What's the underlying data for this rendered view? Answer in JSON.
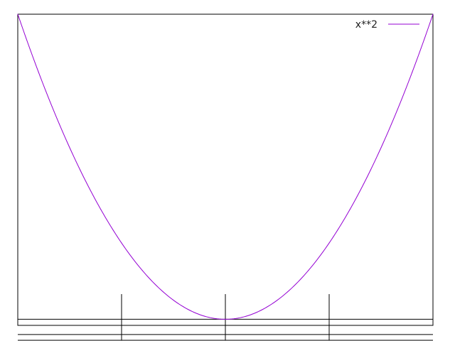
{
  "chart_data": {
    "type": "line",
    "title": "",
    "xlabel": "",
    "ylabel": "",
    "xlim": [
      -10,
      10
    ],
    "ylim": [
      -2,
      100
    ],
    "grid": false,
    "legend": "top-right",
    "series": [
      {
        "name": "x**2",
        "color": "#9400d3",
        "x": [
          -10,
          -9,
          -8,
          -7,
          -6,
          -5,
          -4,
          -3,
          -2,
          -1,
          0,
          1,
          2,
          3,
          4,
          5,
          6,
          7,
          8,
          9,
          10
        ],
        "y": [
          100,
          81,
          64,
          49,
          36,
          25,
          16,
          9,
          4,
          1,
          0,
          1,
          4,
          9,
          16,
          25,
          36,
          49,
          64,
          81,
          100
        ]
      }
    ],
    "reference_lines": {
      "horizontal_y": [
        -5,
        0
      ],
      "vertical_x": [
        -5,
        0,
        5
      ]
    }
  }
}
